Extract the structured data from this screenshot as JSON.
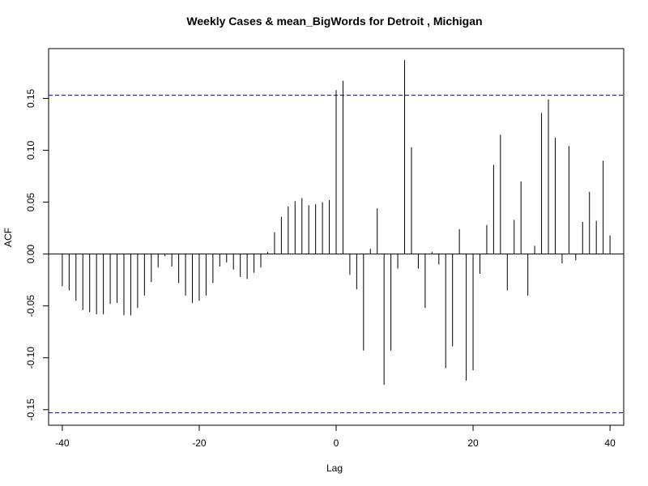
{
  "chart_data": {
    "type": "bar",
    "title": "Weekly Cases & mean_BigWords for Detroit , Michigan",
    "xlabel": "Lag",
    "ylabel": "ACF",
    "xlim": [
      -42,
      42
    ],
    "ylim": [
      -0.165,
      0.198
    ],
    "xticks": [
      -40,
      -20,
      0,
      20,
      40
    ],
    "xtick_labels": [
      "-40",
      "-20",
      "0",
      "20",
      "40"
    ],
    "yticks": [
      -0.15,
      -0.1,
      -0.05,
      0.0,
      0.05,
      0.1,
      0.15
    ],
    "ytick_labels": [
      "-0.15",
      "-0.10",
      "-0.05",
      "0.00",
      "0.05",
      "0.10",
      "0.15"
    ],
    "confidence_bounds": [
      0.153,
      -0.153
    ],
    "confidence_color": "#0000cc",
    "x": [
      -40,
      -39,
      -38,
      -37,
      -36,
      -35,
      -34,
      -33,
      -32,
      -31,
      -30,
      -29,
      -28,
      -27,
      -26,
      -25,
      -24,
      -23,
      -22,
      -21,
      -20,
      -19,
      -18,
      -17,
      -16,
      -15,
      -14,
      -13,
      -12,
      -11,
      -10,
      -9,
      -8,
      -7,
      -6,
      -5,
      -4,
      -3,
      -2,
      -1,
      0,
      1,
      2,
      3,
      4,
      5,
      6,
      7,
      8,
      9,
      10,
      11,
      12,
      13,
      14,
      15,
      16,
      17,
      18,
      19,
      20,
      21,
      22,
      23,
      24,
      25,
      26,
      27,
      28,
      29,
      30,
      31,
      32,
      33,
      34,
      35,
      36,
      37,
      38,
      39,
      40
    ],
    "values": [
      -0.031,
      -0.035,
      -0.045,
      -0.054,
      -0.056,
      -0.058,
      -0.058,
      -0.048,
      -0.047,
      -0.059,
      -0.059,
      -0.052,
      -0.04,
      -0.027,
      -0.013,
      -0.002,
      -0.012,
      -0.028,
      -0.04,
      -0.047,
      -0.045,
      -0.04,
      -0.028,
      -0.012,
      -0.008,
      -0.015,
      -0.022,
      -0.024,
      -0.018,
      -0.013,
      0.002,
      0.021,
      0.036,
      0.046,
      0.051,
      0.054,
      0.047,
      0.048,
      0.05,
      0.052,
      0.158,
      0.167,
      -0.02,
      -0.034,
      -0.093,
      0.005,
      0.044,
      -0.126,
      -0.093,
      -0.014,
      0.187,
      0.103,
      -0.014,
      -0.052,
      0.002,
      -0.01,
      -0.11,
      -0.089,
      0.024,
      -0.122,
      -0.112,
      -0.019,
      0.028,
      0.086,
      0.115,
      -0.035,
      0.033,
      0.07,
      -0.04,
      0.008,
      0.136,
      0.149,
      0.112,
      -0.009,
      0.104,
      -0.006,
      0.031,
      0.06,
      0.032,
      0.09,
      0.018
    ]
  }
}
